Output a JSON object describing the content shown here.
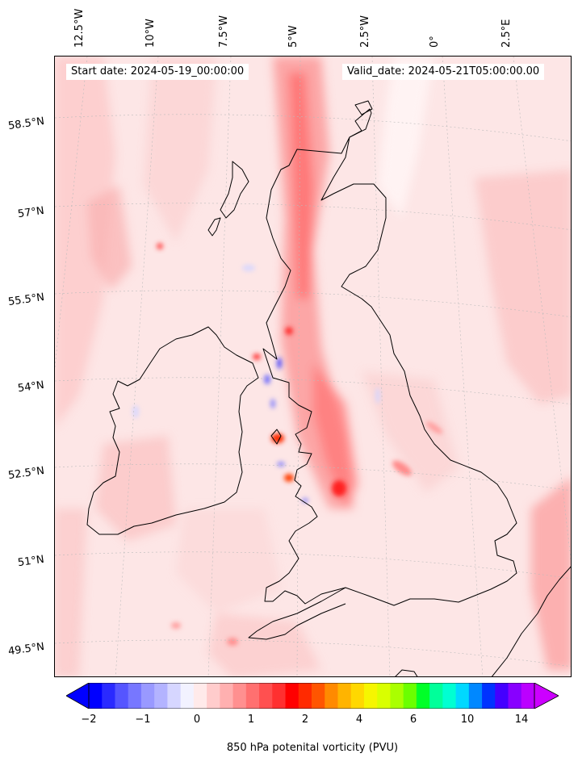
{
  "map": {
    "start_label": "Start date: 2024-05-19_00:00:00",
    "valid_label": "Valid_date: 2024-05-21T05:00:00.00",
    "lon_labels": [
      "12.5°W",
      "10°W",
      "7.5°W",
      "5°W",
      "2.5°W",
      "0°",
      "2.5°E"
    ],
    "lat_labels": [
      "58.5°N",
      "57°N",
      "55.5°N",
      "54°N",
      "52.5°N",
      "51°N",
      "49.5°N"
    ],
    "variable_label": "850 hPa potenital vorticity (PVU)"
  },
  "colorbar": {
    "tick_labels": [
      "−2",
      "−1",
      "0",
      "1",
      "2",
      "4",
      "6",
      "10",
      "14"
    ],
    "colors": [
      "#0000ff",
      "#2a2aff",
      "#5555ff",
      "#7777ff",
      "#9999ff",
      "#b3b3ff",
      "#d6d6ff",
      "#f2f2ff",
      "#ffeaea",
      "#ffcccc",
      "#ffb0b0",
      "#ff9090",
      "#ff7070",
      "#ff5050",
      "#ff3030",
      "#ff0000",
      "#ff2a00",
      "#ff5500",
      "#ff8a00",
      "#ffb400",
      "#ffd800",
      "#f6f600",
      "#d9ff00",
      "#aaff00",
      "#6bff00",
      "#00ff28",
      "#00ff9a",
      "#00ffd2",
      "#00d8ff",
      "#0088ff",
      "#0033ff",
      "#4400ff",
      "#8800ff",
      "#bb00ff"
    ],
    "over_color": "#cc00ff",
    "under_color": "#0000ff"
  }
}
